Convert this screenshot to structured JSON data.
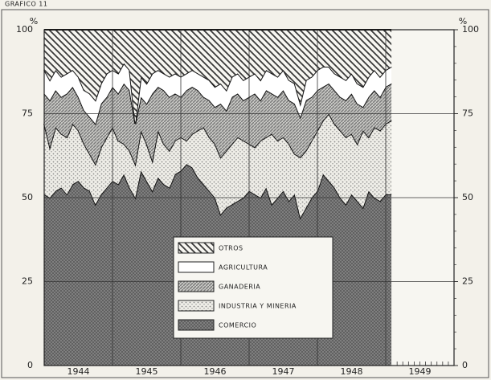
{
  "chart_data": {
    "type": "stacked-area",
    "figure_label": "GRAFICO 11",
    "y_unit": "%",
    "categories": [
      null,
      null,
      null,
      null,
      null,
      null,
      "1944",
      null,
      null,
      null,
      null,
      null,
      null,
      null,
      null,
      null,
      null,
      null,
      "1945",
      null,
      null,
      null,
      null,
      null,
      null,
      null,
      null,
      null,
      null,
      null,
      "1946",
      null,
      null,
      null,
      null,
      null,
      null,
      null,
      null,
      null,
      null,
      null,
      "1947",
      null,
      null,
      null,
      null,
      null,
      null,
      null,
      null,
      null,
      null,
      null,
      "1948",
      null,
      null,
      null,
      null,
      null,
      null,
      null,
      null,
      null,
      null,
      null,
      "1949",
      null,
      null,
      null,
      null,
      null
    ],
    "series": [
      {
        "name": "COMERCIO",
        "color": "#5a5a5a",
        "pattern": "crosshatch",
        "values": [
          51,
          50,
          52,
          53,
          51,
          54,
          55,
          53,
          52,
          48,
          51,
          53,
          55,
          54,
          57,
          53,
          50,
          58,
          55,
          52,
          56,
          54,
          53,
          57,
          58,
          60,
          59,
          56,
          54,
          52,
          50,
          45,
          47,
          48,
          49,
          50,
          52,
          51,
          50,
          53,
          48,
          50,
          52,
          49,
          51,
          44,
          47,
          50,
          52,
          57,
          55,
          53,
          50,
          48,
          51,
          49,
          47,
          52,
          50,
          49,
          51,
          51,
          null,
          null,
          null,
          null,
          null,
          null,
          null,
          null,
          null,
          null
        ]
      },
      {
        "name": "INDUSTRIA Y MINERIA",
        "color": "#8a8a8a",
        "pattern": "stipple",
        "values": [
          21,
          15,
          19,
          16,
          17,
          18,
          15,
          13,
          11,
          12,
          14,
          15,
          16,
          13,
          9,
          11,
          10,
          12,
          11,
          9,
          14,
          12,
          11,
          10,
          10,
          7,
          10,
          14,
          17,
          16,
          16,
          17,
          17,
          18,
          19,
          17,
          14,
          14,
          17,
          15,
          21,
          17,
          16,
          17,
          12,
          18,
          17,
          17,
          18,
          16,
          20,
          19,
          20,
          20,
          18,
          17,
          23,
          16,
          21,
          21,
          21,
          22,
          null,
          null,
          null,
          null,
          null,
          null,
          null,
          null,
          null,
          null
        ]
      },
      {
        "name": "GANADERIA",
        "color": "#7a7a7a",
        "pattern": "dense-hatch",
        "values": [
          9,
          14,
          11,
          11,
          13,
          11,
          10,
          10,
          11,
          12,
          13,
          12,
          12,
          14,
          18,
          18,
          12,
          10,
          12,
          20,
          13,
          16,
          16,
          14,
          12,
          15,
          14,
          12,
          9,
          11,
          11,
          16,
          12,
          14,
          13,
          12,
          14,
          16,
          12,
          14,
          12,
          13,
          14,
          13,
          15,
          12,
          15,
          13,
          12,
          10,
          9,
          10,
          10,
          11,
          12,
          12,
          7,
          12,
          11,
          10,
          11,
          11,
          null,
          null,
          null,
          null,
          null,
          null,
          null,
          null,
          null,
          null
        ]
      },
      {
        "name": "AGRICULTURA",
        "color": "#ffffff",
        "pattern": "none",
        "values": [
          7,
          6,
          6,
          6,
          6,
          5,
          6,
          6,
          7,
          7,
          6,
          7,
          5,
          6,
          6,
          6,
          0,
          6,
          6,
          6,
          5,
          5,
          6,
          6,
          6,
          5,
          5,
          5,
          6,
          6,
          6,
          6,
          6,
          6,
          6,
          6,
          6,
          6,
          6,
          6,
          6,
          6,
          6,
          6,
          6,
          4,
          6,
          6,
          6,
          6,
          5,
          5,
          6,
          6,
          6,
          6,
          6,
          6,
          6,
          6,
          5,
          5,
          null,
          null,
          null,
          null,
          null,
          null,
          null,
          null,
          null,
          null
        ]
      },
      {
        "name": "OTROS",
        "color": "#3a3a3a",
        "pattern": "hatch",
        "values": [
          12,
          15,
          12,
          14,
          13,
          12,
          14,
          18,
          19,
          21,
          16,
          13,
          12,
          13,
          10,
          12,
          28,
          14,
          16,
          13,
          12,
          13,
          14,
          13,
          14,
          13,
          12,
          13,
          14,
          15,
          17,
          16,
          18,
          14,
          13,
          15,
          14,
          13,
          15,
          12,
          13,
          14,
          12,
          15,
          16,
          22,
          15,
          14,
          12,
          11,
          11,
          13,
          14,
          15,
          13,
          16,
          17,
          14,
          12,
          14,
          12,
          11,
          null,
          null,
          null,
          null,
          null,
          null,
          null,
          null,
          null,
          null
        ]
      }
    ],
    "ylim": [
      0,
      100
    ],
    "yticks": [
      0,
      25,
      50,
      75,
      100
    ],
    "grid": true
  }
}
